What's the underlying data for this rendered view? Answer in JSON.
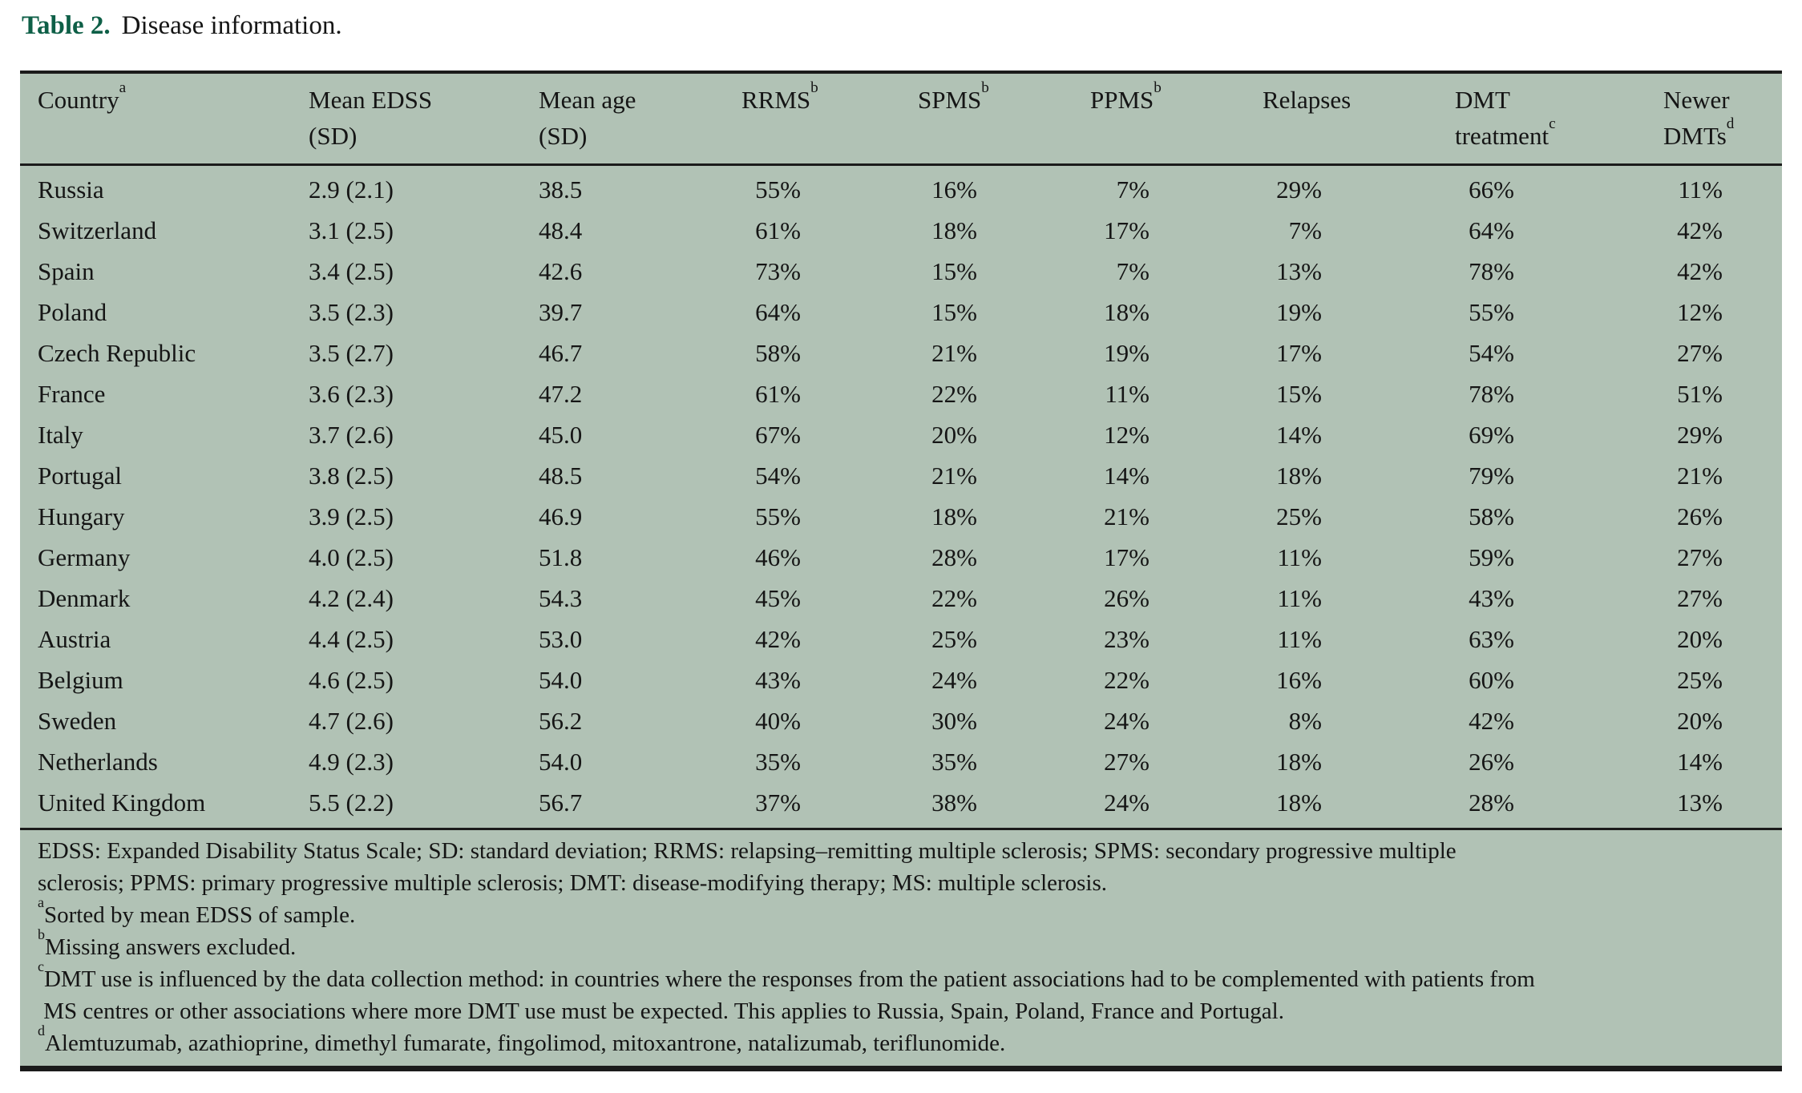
{
  "title": {
    "label": "Table 2.",
    "text": "Disease information.",
    "accent_color": "#0e5f47"
  },
  "table": {
    "background": "#b1c2b5",
    "columns": [
      {
        "id": "country",
        "lines": [
          "Country"
        ],
        "sup": "a"
      },
      {
        "id": "edss",
        "lines": [
          "Mean EDSS",
          "(SD)"
        ],
        "sup": ""
      },
      {
        "id": "age",
        "lines": [
          "Mean age",
          "(SD)"
        ],
        "sup": ""
      },
      {
        "id": "rrms",
        "lines": [
          "RRMS"
        ],
        "sup": "b"
      },
      {
        "id": "spms",
        "lines": [
          "SPMS"
        ],
        "sup": "b"
      },
      {
        "id": "ppms",
        "lines": [
          "PPMS"
        ],
        "sup": "b"
      },
      {
        "id": "relapses",
        "lines": [
          "Relapses"
        ],
        "sup": ""
      },
      {
        "id": "dmt",
        "lines": [
          "DMT",
          "treatment"
        ],
        "sup": "c"
      },
      {
        "id": "newer",
        "lines": [
          "Newer",
          "DMTs"
        ],
        "sup": "d"
      }
    ],
    "rows": [
      {
        "country": "Russia",
        "edss": "2.9 (2.1)",
        "age": "38.5",
        "rrms": "55%",
        "spms": "16%",
        "ppms": "7%",
        "relapses": "29%",
        "dmt": "66%",
        "newer": "11%"
      },
      {
        "country": "Switzerland",
        "edss": "3.1 (2.5)",
        "age": "48.4",
        "rrms": "61%",
        "spms": "18%",
        "ppms": "17%",
        "relapses": "7%",
        "dmt": "64%",
        "newer": "42%"
      },
      {
        "country": "Spain",
        "edss": "3.4 (2.5)",
        "age": "42.6",
        "rrms": "73%",
        "spms": "15%",
        "ppms": "7%",
        "relapses": "13%",
        "dmt": "78%",
        "newer": "42%"
      },
      {
        "country": "Poland",
        "edss": "3.5 (2.3)",
        "age": "39.7",
        "rrms": "64%",
        "spms": "15%",
        "ppms": "18%",
        "relapses": "19%",
        "dmt": "55%",
        "newer": "12%"
      },
      {
        "country": "Czech Republic",
        "edss": "3.5 (2.7)",
        "age": "46.7",
        "rrms": "58%",
        "spms": "21%",
        "ppms": "19%",
        "relapses": "17%",
        "dmt": "54%",
        "newer": "27%"
      },
      {
        "country": "France",
        "edss": "3.6 (2.3)",
        "age": "47.2",
        "rrms": "61%",
        "spms": "22%",
        "ppms": "11%",
        "relapses": "15%",
        "dmt": "78%",
        "newer": "51%"
      },
      {
        "country": "Italy",
        "edss": "3.7 (2.6)",
        "age": "45.0",
        "rrms": "67%",
        "spms": "20%",
        "ppms": "12%",
        "relapses": "14%",
        "dmt": "69%",
        "newer": "29%"
      },
      {
        "country": "Portugal",
        "edss": "3.8 (2.5)",
        "age": "48.5",
        "rrms": "54%",
        "spms": "21%",
        "ppms": "14%",
        "relapses": "18%",
        "dmt": "79%",
        "newer": "21%"
      },
      {
        "country": "Hungary",
        "edss": "3.9 (2.5)",
        "age": "46.9",
        "rrms": "55%",
        "spms": "18%",
        "ppms": "21%",
        "relapses": "25%",
        "dmt": "58%",
        "newer": "26%"
      },
      {
        "country": "Germany",
        "edss": "4.0 (2.5)",
        "age": "51.8",
        "rrms": "46%",
        "spms": "28%",
        "ppms": "17%",
        "relapses": "11%",
        "dmt": "59%",
        "newer": "27%"
      },
      {
        "country": "Denmark",
        "edss": "4.2 (2.4)",
        "age": "54.3",
        "rrms": "45%",
        "spms": "22%",
        "ppms": "26%",
        "relapses": "11%",
        "dmt": "43%",
        "newer": "27%"
      },
      {
        "country": "Austria",
        "edss": "4.4 (2.5)",
        "age": "53.0",
        "rrms": "42%",
        "spms": "25%",
        "ppms": "23%",
        "relapses": "11%",
        "dmt": "63%",
        "newer": "20%"
      },
      {
        "country": "Belgium",
        "edss": "4.6 (2.5)",
        "age": "54.0",
        "rrms": "43%",
        "spms": "24%",
        "ppms": "22%",
        "relapses": "16%",
        "dmt": "60%",
        "newer": "25%"
      },
      {
        "country": "Sweden",
        "edss": "4.7 (2.6)",
        "age": "56.2",
        "rrms": "40%",
        "spms": "30%",
        "ppms": "24%",
        "relapses": "8%",
        "dmt": "42%",
        "newer": "20%"
      },
      {
        "country": "Netherlands",
        "edss": "4.9 (2.3)",
        "age": "54.0",
        "rrms": "35%",
        "spms": "35%",
        "ppms": "27%",
        "relapses": "18%",
        "dmt": "26%",
        "newer": "14%"
      },
      {
        "country": "United Kingdom",
        "edss": "5.5 (2.2)",
        "age": "56.7",
        "rrms": "37%",
        "spms": "38%",
        "ppms": "24%",
        "relapses": "18%",
        "dmt": "28%",
        "newer": "13%"
      }
    ]
  },
  "footnotes": [
    {
      "marker": "",
      "lines": [
        "EDSS: Expanded Disability Status Scale; SD: standard deviation; RRMS: relapsing–remitting multiple sclerosis; SPMS: secondary progressive multiple",
        "sclerosis; PPMS: primary progressive multiple sclerosis; DMT: disease-modifying therapy; MS: multiple sclerosis."
      ]
    },
    {
      "marker": "a",
      "lines": [
        "Sorted by mean EDSS of sample."
      ]
    },
    {
      "marker": "b",
      "lines": [
        "Missing answers excluded."
      ]
    },
    {
      "marker": "c",
      "lines": [
        "DMT use is influenced by the data collection method: in countries where the responses from the patient associations had to be complemented with patients from",
        " MS centres or other associations where more DMT use must be expected. This applies to Russia, Spain, Poland, France and Portugal."
      ]
    },
    {
      "marker": "d",
      "lines": [
        "Alemtuzumab, azathioprine, dimethyl fumarate, fingolimod, mitoxantrone, natalizumab, teriflunomide."
      ]
    }
  ]
}
